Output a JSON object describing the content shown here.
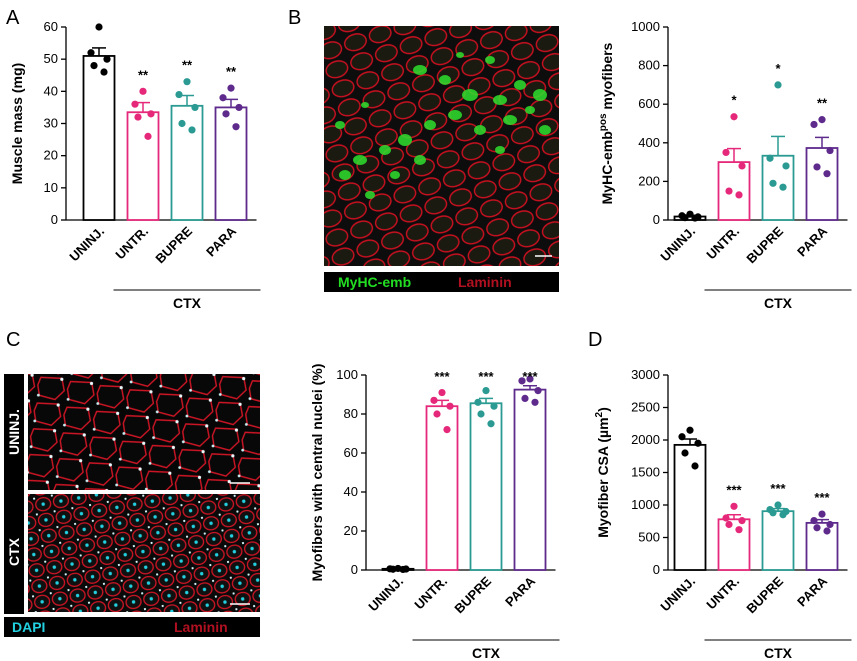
{
  "colors": {
    "uninj": "#000000",
    "untr": "#e6287a",
    "bupre": "#2a9a92",
    "para": "#5e2a8c",
    "myhc": "#22dd22",
    "laminin": "#cc1020",
    "dapi": "#22d0e0"
  },
  "panels": {
    "A": "A",
    "B": "B",
    "C": "C",
    "D": "D"
  },
  "micrographs": {
    "b_legend": {
      "left": "MyHC-emb",
      "right": "Laminin"
    },
    "c_legend": {
      "left": "DAPI",
      "right": "Laminin"
    },
    "c_side_labels": [
      "UNINJ.",
      "CTX"
    ]
  },
  "chart_data": [
    {
      "panel": "A",
      "type": "bar",
      "ylabel": "Muscle mass (mg)",
      "ylim": [
        0,
        60
      ],
      "yticks": [
        "0",
        "10",
        "20",
        "30",
        "40",
        "50",
        "60"
      ],
      "categories": [
        "UNINJ.",
        "UNTR.",
        "BUPRE",
        "PARA"
      ],
      "values": [
        51,
        33.5,
        35.5,
        35
      ],
      "sem": [
        2.5,
        3,
        3.2,
        2.5
      ],
      "points": [
        [
          60,
          52,
          50,
          48,
          46
        ],
        [
          40,
          36,
          33,
          32,
          26
        ],
        [
          43,
          39,
          35,
          30,
          28
        ],
        [
          41,
          38,
          35,
          33,
          29
        ]
      ],
      "significance": [
        "",
        "**",
        "**",
        "**"
      ],
      "bracket_label": "CTX"
    },
    {
      "panel": "B",
      "type": "bar",
      "ylabel": "MyHC-emb",
      "ylabel_sup": "pos",
      "ylabel_suffix": " myofibers",
      "ylim": [
        0,
        1000
      ],
      "yticks": [
        "0",
        "200",
        "400",
        "600",
        "800",
        "1000"
      ],
      "categories": [
        "UNINJ.",
        "UNTR.",
        "BUPRE",
        "PARA"
      ],
      "values": [
        18,
        300,
        333,
        373
      ],
      "sem": [
        6,
        70,
        100,
        55
      ],
      "points": [
        [
          30,
          22,
          16,
          12,
          10
        ],
        [
          535,
          350,
          280,
          150,
          130
        ],
        [
          700,
          320,
          280,
          190,
          170
        ],
        [
          520,
          495,
          360,
          275,
          240
        ]
      ],
      "significance": [
        "",
        "*",
        "*",
        "**"
      ],
      "bracket_label": "CTX"
    },
    {
      "panel": "C",
      "type": "bar",
      "ylabel": "Myofibers with central nuclei (%)",
      "ylim": [
        0,
        100
      ],
      "yticks": [
        "0",
        "20",
        "40",
        "60",
        "80",
        "100"
      ],
      "categories": [
        "UNINJ.",
        "UNTR.",
        "BUPRE",
        "PARA"
      ],
      "values": [
        0.6,
        84,
        85.5,
        92.5
      ],
      "sem": [
        0.3,
        3,
        2.5,
        2
      ],
      "points": [
        [
          0.8,
          0.6,
          0.5,
          0.4,
          0.3
        ],
        [
          91,
          87,
          84,
          80,
          72
        ],
        [
          92,
          86,
          84,
          80,
          75
        ],
        [
          98,
          97,
          92,
          88,
          86
        ]
      ],
      "significance": [
        "",
        "***",
        "***",
        "***"
      ],
      "bracket_label": "CTX"
    },
    {
      "panel": "D",
      "type": "bar",
      "ylabel": "Myofiber CSA (µm",
      "ylabel_sup": "2",
      "ylabel_suffix": ")",
      "ylim": [
        0,
        3000
      ],
      "yticks": [
        "0",
        "500",
        "1000",
        "1500",
        "2000",
        "2500",
        "3000"
      ],
      "categories": [
        "UNINJ.",
        "UNTR.",
        "BUPRE",
        "PARA"
      ],
      "values": [
        1925,
        780,
        905,
        725
      ],
      "sem": [
        90,
        70,
        40,
        50
      ],
      "points": [
        [
          2150,
          2050,
          1950,
          1800,
          1600
        ],
        [
          980,
          800,
          760,
          700,
          620
        ],
        [
          1000,
          930,
          900,
          880,
          850
        ],
        [
          860,
          760,
          700,
          650,
          600
        ]
      ],
      "significance": [
        "",
        "***",
        "***",
        "***"
      ],
      "bracket_label": "CTX"
    }
  ]
}
